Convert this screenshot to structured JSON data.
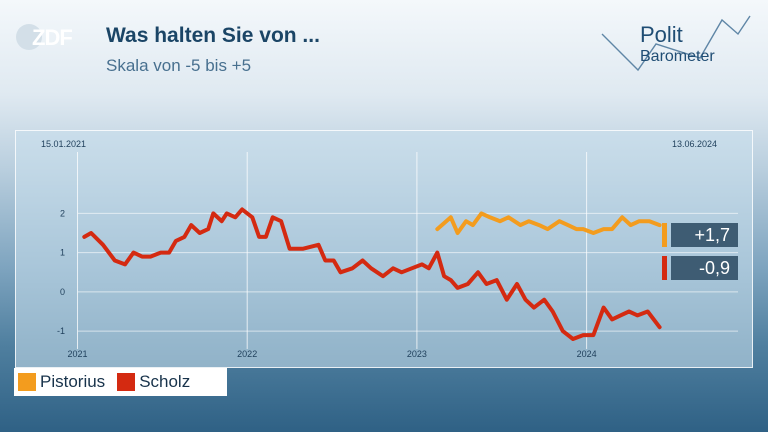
{
  "branding": {
    "channel_logo": "ZDF",
    "brand_line1": "Polit",
    "brand_line2": "Barometer"
  },
  "header": {
    "title": "Was halten Sie von ...",
    "subtitle": "Skala von -5 bis +5"
  },
  "colors": {
    "pistorius": "#f39c1e",
    "scholz": "#d42a11",
    "value_box": "#3e5c73",
    "title": "#1b4566"
  },
  "chart_data": {
    "type": "line",
    "date_start_label": "15.01.2021",
    "date_end_label": "13.06.2024",
    "x_range": [
      2021.0,
      2024.5
    ],
    "ylim": [
      -1.5,
      2.5
    ],
    "y_ticks": [
      2,
      1,
      0,
      -1
    ],
    "y_tick_labels": [
      "2",
      "1",
      "0",
      "-1"
    ],
    "x_ticks": [
      2021,
      2022,
      2023,
      2024
    ],
    "x_tick_labels": [
      "2021",
      "2022",
      "2023",
      "2024"
    ],
    "grid": true,
    "legend": "bottom-left",
    "series": [
      {
        "name": "Pistorius",
        "color": "#f39c1e",
        "end_label": "+1,7",
        "x": [
          2023.12,
          2023.2,
          2023.24,
          2023.29,
          2023.33,
          2023.38,
          2023.43,
          2023.49,
          2023.54,
          2023.61,
          2023.66,
          2023.72,
          2023.77,
          2023.84,
          2023.89,
          2023.94,
          2023.98,
          2024.04,
          2024.1,
          2024.15,
          2024.21,
          2024.26,
          2024.31,
          2024.37,
          2024.43
        ],
        "y": [
          1.6,
          1.9,
          1.5,
          1.8,
          1.7,
          2.0,
          1.9,
          1.8,
          1.9,
          1.7,
          1.8,
          1.7,
          1.6,
          1.8,
          1.7,
          1.6,
          1.6,
          1.5,
          1.6,
          1.6,
          1.9,
          1.7,
          1.8,
          1.8,
          1.7
        ]
      },
      {
        "name": "Scholz",
        "color": "#d42a11",
        "end_label": "-0,9",
        "x": [
          2021.04,
          2021.08,
          2021.15,
          2021.22,
          2021.28,
          2021.33,
          2021.38,
          2021.43,
          2021.49,
          2021.54,
          2021.58,
          2021.63,
          2021.67,
          2021.72,
          2021.77,
          2021.8,
          2021.85,
          2021.88,
          2021.93,
          2021.97,
          2022.03,
          2022.07,
          2022.11,
          2022.15,
          2022.2,
          2022.25,
          2022.33,
          2022.42,
          2022.46,
          2022.51,
          2022.55,
          2022.62,
          2022.68,
          2022.73,
          2022.8,
          2022.86,
          2022.91,
          2022.97,
          2023.03,
          2023.07,
          2023.12,
          2023.16,
          2023.2,
          2023.24,
          2023.3,
          2023.36,
          2023.41,
          2023.47,
          2023.53,
          2023.59,
          2023.64,
          2023.69,
          2023.75,
          2023.8,
          2023.86,
          2023.92,
          2023.98,
          2024.04,
          2024.1,
          2024.15,
          2024.2,
          2024.25,
          2024.3,
          2024.36,
          2024.43
        ],
        "y": [
          1.4,
          1.5,
          1.2,
          0.8,
          0.7,
          1.0,
          0.9,
          0.9,
          1.0,
          1.0,
          1.3,
          1.4,
          1.7,
          1.5,
          1.6,
          2.0,
          1.8,
          2.0,
          1.9,
          2.1,
          1.9,
          1.4,
          1.4,
          1.9,
          1.8,
          1.1,
          1.1,
          1.2,
          0.8,
          0.8,
          0.5,
          0.6,
          0.8,
          0.6,
          0.4,
          0.6,
          0.5,
          0.6,
          0.7,
          0.6,
          1.0,
          0.4,
          0.3,
          0.1,
          0.2,
          0.5,
          0.2,
          0.3,
          -0.2,
          0.2,
          -0.2,
          -0.4,
          -0.2,
          -0.5,
          -1.0,
          -1.2,
          -1.1,
          -1.1,
          -0.4,
          -0.7,
          -0.6,
          -0.5,
          -0.6,
          -0.5,
          -0.9
        ]
      }
    ]
  }
}
